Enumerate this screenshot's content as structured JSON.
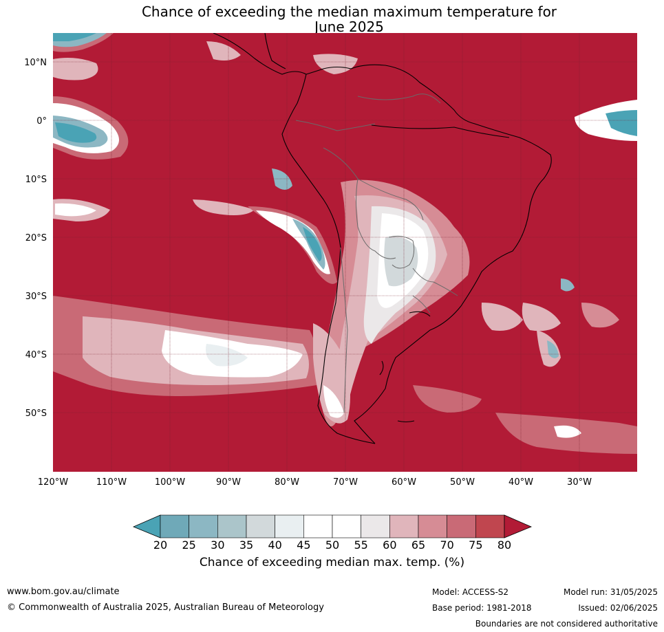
{
  "title": {
    "line1": "Chance of exceeding the median maximum temperature for",
    "line2": "June 2025"
  },
  "map": {
    "background_color": "#b21b36",
    "lat_labels": [
      "10°N",
      "0°",
      "10°S",
      "20°S",
      "30°S",
      "40°S",
      "50°S"
    ],
    "lon_labels": [
      "120°W",
      "110°W",
      "100°W",
      "90°W",
      "80°W",
      "70°W",
      "60°W",
      "50°W",
      "40°W",
      "30°W"
    ]
  },
  "colorbar": {
    "ticks": [
      "20",
      "25",
      "30",
      "35",
      "40",
      "45",
      "50",
      "55",
      "60",
      "65",
      "70",
      "75",
      "80"
    ],
    "colors": [
      "#4aa3b5",
      "#6fa9b8",
      "#8cb7c3",
      "#abc5ca",
      "#d2d9db",
      "#e9eff1",
      "#ffffff",
      "#ffffff",
      "#ebe8e9",
      "#e0b5bb",
      "#d68c95",
      "#c96a76",
      "#c0464f",
      "#b21b36"
    ],
    "title": "Chance of exceeding median max. temp. (%)"
  },
  "footer": {
    "website": "www.bom.gov.au/climate",
    "copyright": "© Commonwealth of Australia 2025, Australian Bureau of Meteorology",
    "model": "Model: ACCESS-S2",
    "base_period": "Base period: 1981-2018",
    "model_run": "Model run: 31/05/2025",
    "issued": "Issued: 02/06/2025",
    "boundaries_note": "Boundaries are not considered authoritative"
  }
}
